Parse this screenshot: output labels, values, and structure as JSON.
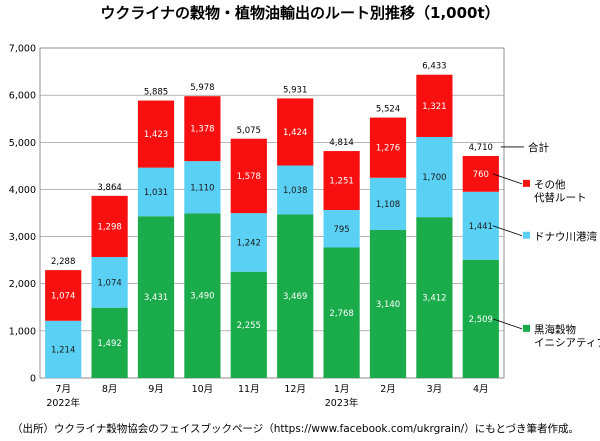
{
  "chart_data": {
    "type": "bar",
    "stacked": true,
    "title": "ウクライナの穀物・植物油輸出のルート別推移（1,000t）",
    "categories": [
      "7月",
      "8月",
      "9月",
      "10月",
      "11月",
      "12月",
      "1月",
      "2月",
      "3月",
      "4月"
    ],
    "year_labels": [
      {
        "category_index": 0,
        "text": "2022年"
      },
      {
        "category_index": 6,
        "text": "2023年"
      }
    ],
    "ylim": [
      0,
      7000
    ],
    "yticks": [
      "0",
      "1,000",
      "2,000",
      "3,000",
      "4,000",
      "5,000",
      "6,000",
      "7,000"
    ],
    "series": [
      {
        "name": "黒海穀物イニシアティブ",
        "legend_lines": [
          "黒海穀物",
          "イニシアティブ"
        ],
        "color": "#1aab4b",
        "values": [
          0,
          1492,
          3431,
          3490,
          2255,
          3469,
          2768,
          3140,
          3412,
          2509
        ],
        "labels": [
          "",
          "1,492",
          "3,431",
          "3,490",
          "2,255",
          "3,469",
          "2,768",
          "3,140",
          "3,412",
          "2,509"
        ]
      },
      {
        "name": "ドナウ川港湾",
        "legend_lines": [
          "ドナウ川港湾"
        ],
        "color": "#5bd0f5",
        "values": [
          1214,
          1074,
          1031,
          1110,
          1242,
          1038,
          795,
          1108,
          1700,
          1441
        ],
        "labels": [
          "1,214",
          "1,074",
          "1,031",
          "1,110",
          "1,242",
          "1,038",
          "795",
          "1,108",
          "1,700",
          "1,441"
        ]
      },
      {
        "name": "その他代替ルート",
        "legend_lines": [
          "その他",
          "代替ルート"
        ],
        "color": "#f80f0f",
        "values": [
          1074,
          1298,
          1423,
          1378,
          1578,
          1424,
          1251,
          1276,
          1321,
          760
        ],
        "labels": [
          "1,074",
          "1,298",
          "1,423",
          "1,378",
          "1,578",
          "1,424",
          "1,251",
          "1,276",
          "1,321",
          "760"
        ]
      }
    ],
    "totals": [
      2288,
      3864,
      5885,
      5978,
      5075,
      5931,
      4814,
      5524,
      6433,
      4710
    ],
    "total_labels": [
      "2,288",
      "3,864",
      "5,885",
      "5,978",
      "5,075",
      "5,931",
      "4,814",
      "5,524",
      "6,433",
      "4,710"
    ],
    "total_legend": "合計",
    "grid": true,
    "legend_position": "right"
  },
  "source_note": "（出所）ウクライナ穀物協会のフェイスブックページ（https://www.facebook.com/ukrgrain/）にもとづき筆者作成。"
}
